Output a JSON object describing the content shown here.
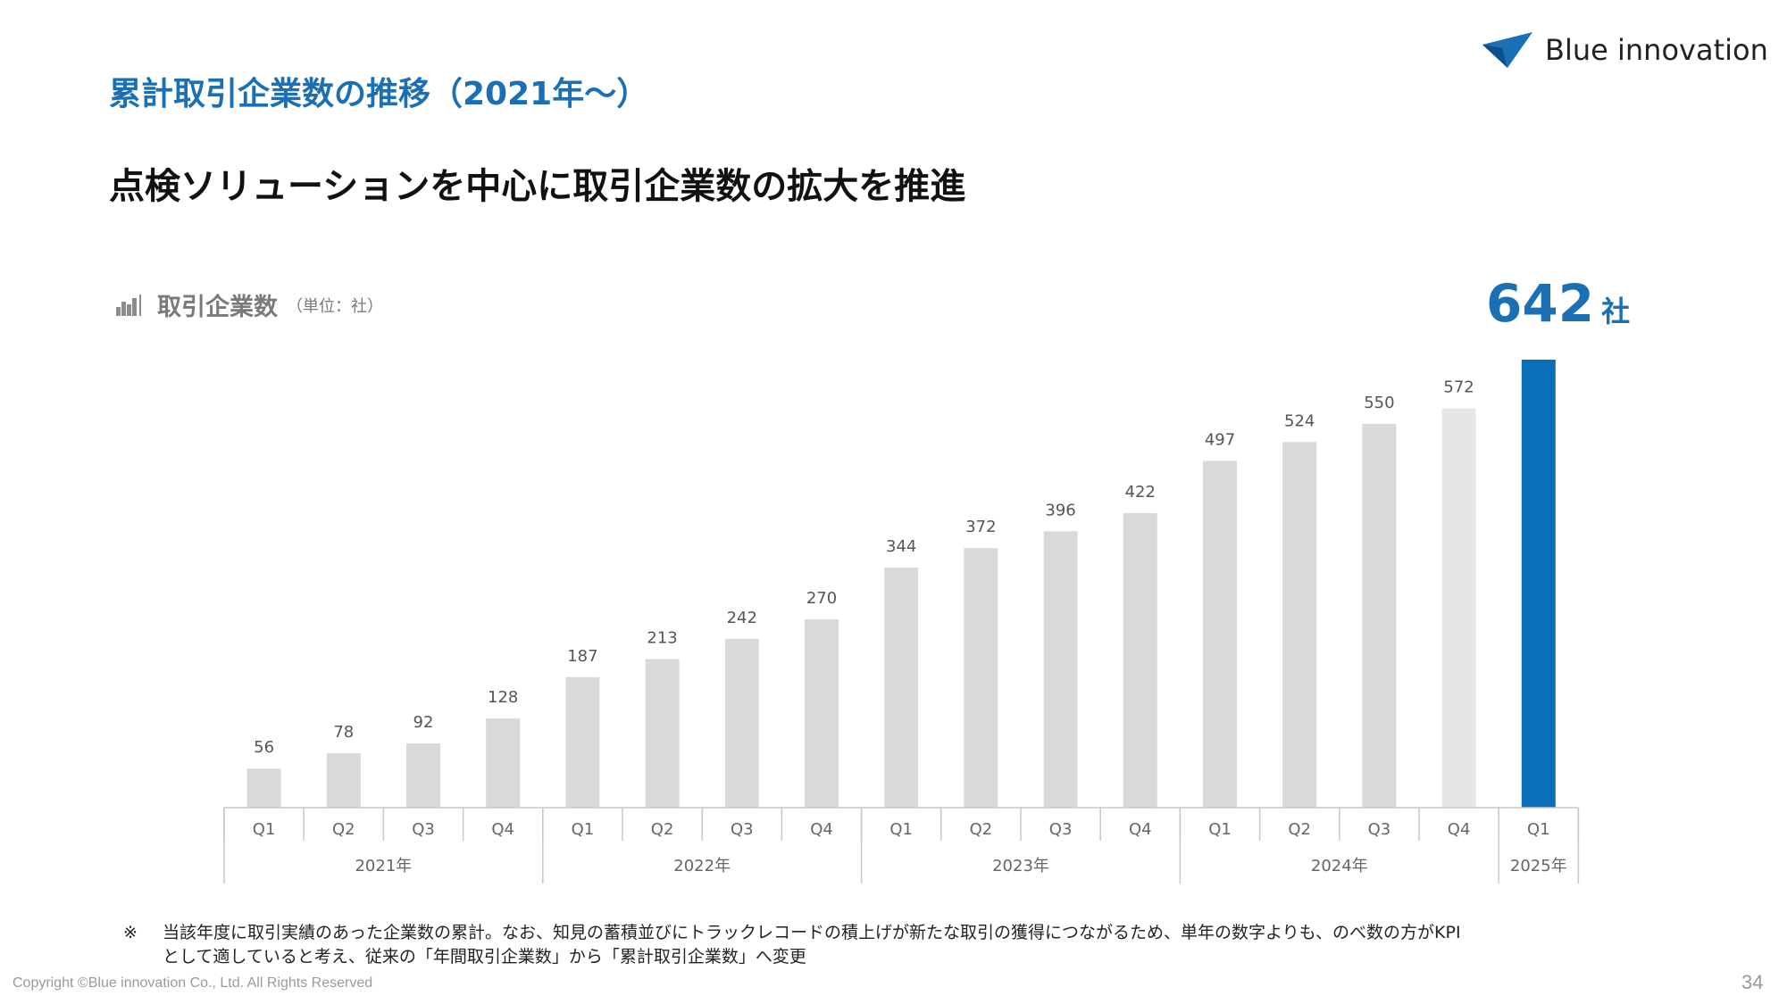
{
  "header": {
    "section_title": "累計取引企業数の推移（2021年〜）",
    "logo_text": "Blue innovation",
    "headline": "点検ソリューションを中心に取引企業数の拡大を推進"
  },
  "chart_header": {
    "icon": "bar-chart-icon",
    "title": "取引企業数",
    "unit": "（単位：社）"
  },
  "kpi": {
    "value": "642",
    "unit": "社"
  },
  "colors": {
    "accent": "#0a6eb8",
    "bar": "#d9d9d9",
    "bar_light": "#e6e6e6",
    "title_blue": "#1a6fb5"
  },
  "chart_data": {
    "type": "bar",
    "categories": [
      "Q1",
      "Q2",
      "Q3",
      "Q4",
      "Q1",
      "Q2",
      "Q3",
      "Q4",
      "Q1",
      "Q2",
      "Q3",
      "Q4",
      "Q1",
      "Q2",
      "Q3",
      "Q4",
      "Q1"
    ],
    "years": [
      {
        "label": "2021年",
        "count": 4
      },
      {
        "label": "2022年",
        "count": 4
      },
      {
        "label": "2023年",
        "count": 4
      },
      {
        "label": "2024年",
        "count": 4
      },
      {
        "label": "2025年",
        "count": 1
      }
    ],
    "values": [
      56,
      78,
      92,
      128,
      187,
      213,
      242,
      270,
      344,
      372,
      396,
      422,
      497,
      524,
      550,
      572,
      642
    ],
    "data_labels": [
      "56",
      "78",
      "92",
      "128",
      "187",
      "213",
      "242",
      "270",
      "344",
      "372",
      "396",
      "422",
      "497",
      "524",
      "550",
      "572",
      ""
    ],
    "highlight_index": 16,
    "light_index": 15,
    "ylim": [
      0,
      642
    ],
    "grid": false,
    "legend": "none"
  },
  "footnote": {
    "mark": "※",
    "line1": "当該年度に取引実績のあった企業数の累計。なお、知見の蓄積並びにトラックレコードの積上げが新たな取引の獲得につながるため、単年の数字よりも、のべ数の方がKPI",
    "line2": "として適していると考え、従来の「年間取引企業数」から「累計取引企業数」へ変更"
  },
  "footer": {
    "copyright": "Copyright ©Blue innovation Co., Ltd. All Rights Reserved",
    "page_number": "34"
  }
}
